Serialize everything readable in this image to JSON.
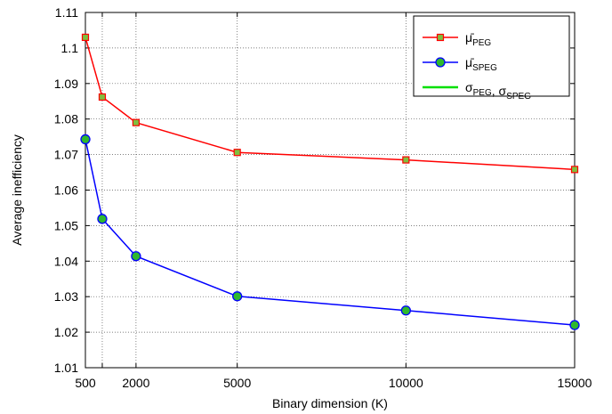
{
  "chart_data": {
    "type": "line",
    "xlabel": "Binary dimension (K)",
    "ylabel": "Average inefficiency",
    "xlim": [
      500,
      15000
    ],
    "ylim": [
      1.01,
      1.11
    ],
    "xticks": [
      500,
      2000,
      5000,
      10000,
      15000
    ],
    "xtick_labels": [
      "500",
      "2000",
      "5000",
      "10000",
      "15000"
    ],
    "yticks": [
      1.01,
      1.02,
      1.03,
      1.04,
      1.05,
      1.06,
      1.07,
      1.08,
      1.09,
      1.1,
      1.11
    ],
    "ytick_labels": [
      "1.01",
      "1.02",
      "1.03",
      "1.04",
      "1.05",
      "1.06",
      "1.07",
      "1.08",
      "1.09",
      "1.1",
      "1.11"
    ],
    "grid": true,
    "legend_position": "top-right",
    "x": [
      500,
      1000,
      2000,
      5000,
      10000,
      15000
    ],
    "series": [
      {
        "name_base": "μ̄",
        "name_sub": "PEG",
        "color": "#ff0000",
        "marker": "square",
        "marker_fill": "#7fbf3f",
        "values": [
          1.103,
          1.0862,
          1.079,
          1.0706,
          1.0685,
          1.0658
        ]
      },
      {
        "name_base": "μ̄",
        "name_sub": "SPEG",
        "color": "#0000ff",
        "marker": "circle",
        "marker_fill": "#2eb82e",
        "values": [
          1.0743,
          1.0519,
          1.0414,
          1.0301,
          1.0261,
          1.022
        ]
      },
      {
        "name_parts": [
          {
            "base": "σ",
            "sub": "PEG"
          },
          {
            "base": ", σ",
            "sub": "SPEG"
          }
        ],
        "color": "#00e000",
        "marker": "none",
        "legend_only": true
      }
    ]
  }
}
